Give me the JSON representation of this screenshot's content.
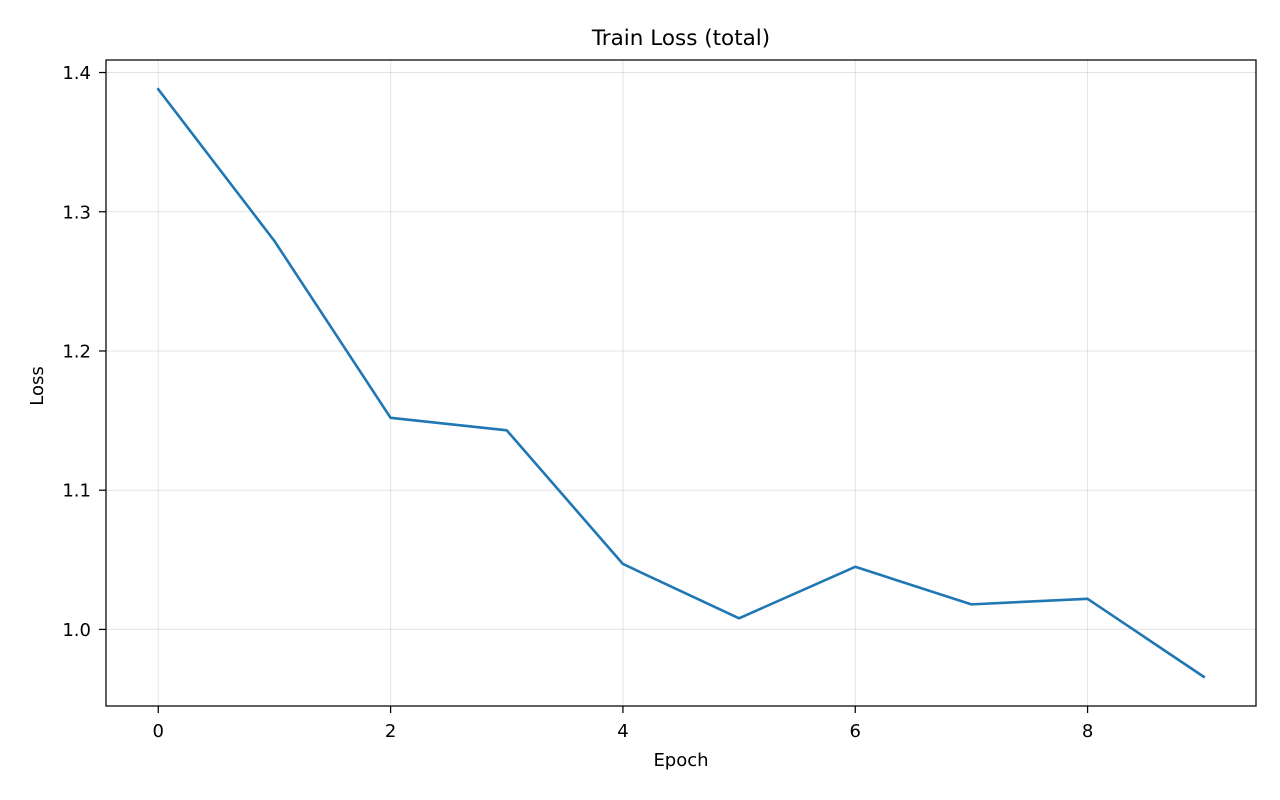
{
  "chart_data": {
    "type": "line",
    "title": "Train Loss (total)",
    "xlabel": "Epoch",
    "ylabel": "Loss",
    "xlim": [
      -0.45,
      9.45
    ],
    "ylim": [
      0.945,
      1.409
    ],
    "xticks": [
      0,
      2,
      4,
      6,
      8
    ],
    "xtick_labels": [
      "0",
      "2",
      "4",
      "6",
      "8"
    ],
    "yticks": [
      1.0,
      1.1,
      1.2,
      1.3,
      1.4
    ],
    "ytick_labels": [
      "1.0",
      "1.1",
      "1.2",
      "1.3",
      "1.4"
    ],
    "grid": true,
    "legend": "none",
    "x": [
      0,
      1,
      2,
      3,
      4,
      5,
      6,
      7,
      8,
      9
    ],
    "series": [
      {
        "color": "#1f77b4",
        "values": [
          1.388,
          1.279,
          1.152,
          1.143,
          1.047,
          1.008,
          1.045,
          1.018,
          1.022,
          0.966
        ]
      }
    ]
  }
}
